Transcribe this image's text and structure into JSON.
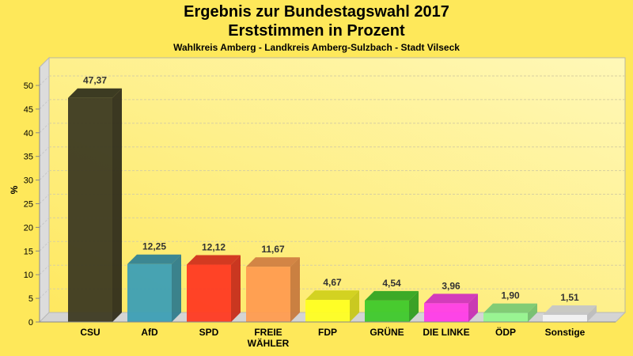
{
  "chart_data": {
    "type": "bar",
    "title": "Ergebnis zur Bundestagswahl 2017",
    "subtitle": "Erststimmen in Prozent",
    "subtitle2": "Wahlkreis Amberg - Landkreis Amberg-Sulzbach - Stadt Vilseck",
    "xlabel": "",
    "ylabel": "%",
    "ylim": [
      0,
      50
    ],
    "yticks": [
      0,
      5,
      10,
      15,
      20,
      25,
      30,
      35,
      40,
      45,
      50
    ],
    "grid": true,
    "categories": [
      "CSU",
      "AfD",
      "SPD",
      "FREIE WÄHLER",
      "FDP",
      "GRÜNE",
      "DIE LINKE",
      "ÖDP",
      "Sonstige"
    ],
    "values": [
      47.37,
      12.25,
      12.12,
      11.67,
      4.67,
      4.54,
      3.96,
      1.9,
      1.51
    ],
    "value_labels": [
      "47,37",
      "12,25",
      "12,12",
      "11,67",
      "4,67",
      "4,54",
      "3,96",
      "1,90",
      "1,51"
    ],
    "colors": [
      "#3d3a22",
      "#3d9fb5",
      "#ff3a22",
      "#ff9c50",
      "#ffff22",
      "#3ec92b",
      "#ff3ce8",
      "#96f58e",
      "#f2f2f2"
    ]
  }
}
